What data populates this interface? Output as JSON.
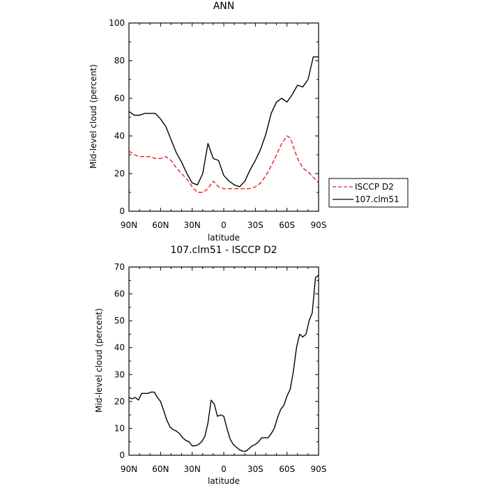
{
  "colors": {
    "obs": "#e8211c",
    "model": "#000000",
    "frame": "#000000",
    "background": "#ffffff"
  },
  "chart_data": [
    {
      "type": "line",
      "title": "ANN",
      "xlabel": "latitude",
      "ylabel": "Mid-level cloud (percent)",
      "xlim": [
        90,
        -90
      ],
      "ylim": [
        0,
        100
      ],
      "xticks": [
        90,
        60,
        30,
        0,
        -30,
        -60,
        -90
      ],
      "xtick_labels": [
        "90N",
        "60N",
        "30N",
        "0",
        "30S",
        "60S",
        "90S"
      ],
      "yticks": [
        0,
        20,
        40,
        60,
        80,
        100
      ],
      "ytick_labels": [
        "0",
        "20",
        "40",
        "60",
        "80",
        "100"
      ],
      "grid": false,
      "legend": {
        "position": "right",
        "entries": [
          "ISCCP D2",
          "107.clm51"
        ]
      },
      "series": [
        {
          "name": "ISCCP D2",
          "style": "dashed",
          "color": "#e8211c",
          "x": [
            90,
            85,
            80,
            75,
            70,
            65,
            60,
            55,
            50,
            45,
            40,
            35,
            30,
            25,
            20,
            15,
            10,
            5,
            0,
            -5,
            -10,
            -15,
            -20,
            -25,
            -30,
            -35,
            -40,
            -45,
            -50,
            -55,
            -60,
            -63,
            -65,
            -70,
            -75,
            -80,
            -85,
            -90
          ],
          "y": [
            32,
            30,
            29,
            29,
            29,
            28,
            28,
            29,
            27,
            23,
            20,
            17,
            13,
            10,
            10,
            12,
            16,
            13,
            12,
            12,
            12,
            12,
            12,
            12,
            13,
            15,
            19,
            24,
            30,
            36,
            40,
            39,
            36,
            28,
            23,
            21,
            18,
            15
          ]
        },
        {
          "name": "107.clm51",
          "style": "solid",
          "color": "#000000",
          "x": [
            90,
            85,
            80,
            75,
            70,
            65,
            60,
            55,
            50,
            45,
            40,
            35,
            30,
            25,
            20,
            15,
            10,
            5,
            0,
            -5,
            -10,
            -15,
            -20,
            -25,
            -30,
            -35,
            -40,
            -45,
            -50,
            -55,
            -60,
            -65,
            -70,
            -75,
            -80,
            -85,
            -90
          ],
          "y": [
            53,
            51,
            51,
            52,
            52,
            52,
            49,
            45,
            38,
            31,
            26,
            20,
            15,
            14,
            20,
            36,
            28,
            27,
            19,
            16,
            14,
            13,
            16,
            22,
            27,
            33,
            41,
            52,
            58,
            60,
            58,
            62,
            67,
            66,
            70,
            82,
            82
          ]
        }
      ]
    },
    {
      "type": "line",
      "title": "107.clm51 - ISCCP D2",
      "xlabel": "latitude",
      "ylabel": "Mid-level cloud (percent)",
      "xlim": [
        90,
        -90
      ],
      "ylim": [
        0,
        70
      ],
      "xticks": [
        90,
        60,
        30,
        0,
        -30,
        -60,
        -90
      ],
      "xtick_labels": [
        "90N",
        "60N",
        "30N",
        "0",
        "30S",
        "60S",
        "90S"
      ],
      "yticks": [
        0,
        10,
        20,
        30,
        40,
        50,
        60,
        70
      ],
      "ytick_labels": [
        "0",
        "10",
        "20",
        "30",
        "40",
        "50",
        "60",
        "70"
      ],
      "grid": false,
      "series": [
        {
          "style": "solid",
          "color": "#000000",
          "x": [
            90,
            87,
            84,
            81,
            78,
            75,
            72,
            69,
            66,
            63,
            60,
            57,
            54,
            51,
            48,
            45,
            42,
            39,
            36,
            33,
            30,
            27,
            24,
            21,
            18,
            15,
            12,
            9,
            6,
            3,
            0,
            -3,
            -6,
            -9,
            -12,
            -15,
            -18,
            -21,
            -24,
            -27,
            -30,
            -33,
            -36,
            -39,
            -42,
            -45,
            -48,
            -51,
            -54,
            -57,
            -60,
            -63,
            -66,
            -69,
            -72,
            -75,
            -78,
            -81,
            -84,
            -87,
            -90
          ],
          "y": [
            21.5,
            21,
            21.5,
            20.5,
            23,
            23,
            23,
            23.5,
            23.5,
            21.5,
            20,
            16.5,
            13,
            10.5,
            9.5,
            9,
            8,
            6.5,
            5.5,
            5,
            3.5,
            3.5,
            4,
            5,
            7,
            12,
            20.5,
            19,
            14.5,
            15,
            14.5,
            10,
            6,
            4,
            3,
            2,
            1.5,
            1.5,
            2.5,
            3.5,
            4,
            5,
            6.5,
            6.5,
            6.5,
            8,
            10,
            14,
            17,
            18.5,
            22,
            24.5,
            31,
            40,
            45,
            44,
            45,
            50,
            53,
            66,
            67
          ]
        }
      ]
    }
  ]
}
